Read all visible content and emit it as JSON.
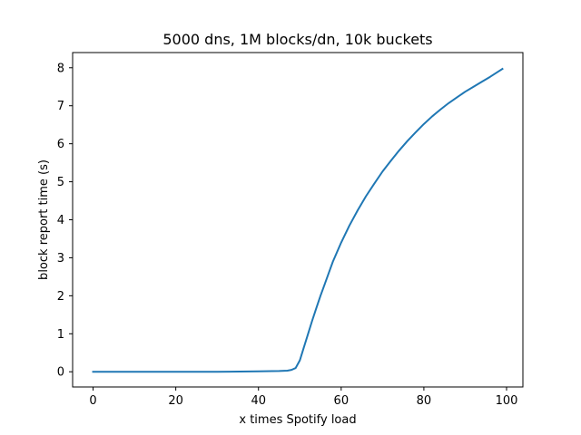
{
  "chart_data": {
    "type": "line",
    "title": "5000 dns, 1M blocks/dn, 10k buckets",
    "xlabel": "x times Spotify load",
    "ylabel": "block report time (s)",
    "xlim": [
      -4.95,
      103.95
    ],
    "ylim": [
      -0.4,
      8.4
    ],
    "xticks": [
      0,
      20,
      40,
      60,
      80,
      100
    ],
    "yticks": [
      0,
      1,
      2,
      3,
      4,
      5,
      6,
      7,
      8
    ],
    "grid": false,
    "series": [
      {
        "color": "#1f77b4",
        "x": [
          0,
          10,
          20,
          30,
          40,
          45,
          47,
          48,
          49,
          50,
          51,
          52,
          53,
          54,
          55,
          56,
          57,
          58,
          60,
          62,
          64,
          66,
          68,
          70,
          72,
          74,
          76,
          78,
          80,
          82,
          84,
          86,
          88,
          90,
          92,
          94,
          96,
          98,
          99
        ],
        "y": [
          0.0,
          0.0,
          0.0,
          0.0,
          0.01,
          0.02,
          0.03,
          0.05,
          0.1,
          0.3,
          0.65,
          1.0,
          1.35,
          1.68,
          2.0,
          2.3,
          2.6,
          2.9,
          3.4,
          3.85,
          4.25,
          4.62,
          4.95,
          5.27,
          5.55,
          5.82,
          6.07,
          6.3,
          6.52,
          6.72,
          6.9,
          7.07,
          7.22,
          7.37,
          7.5,
          7.63,
          7.76,
          7.9,
          7.97
        ]
      }
    ]
  }
}
